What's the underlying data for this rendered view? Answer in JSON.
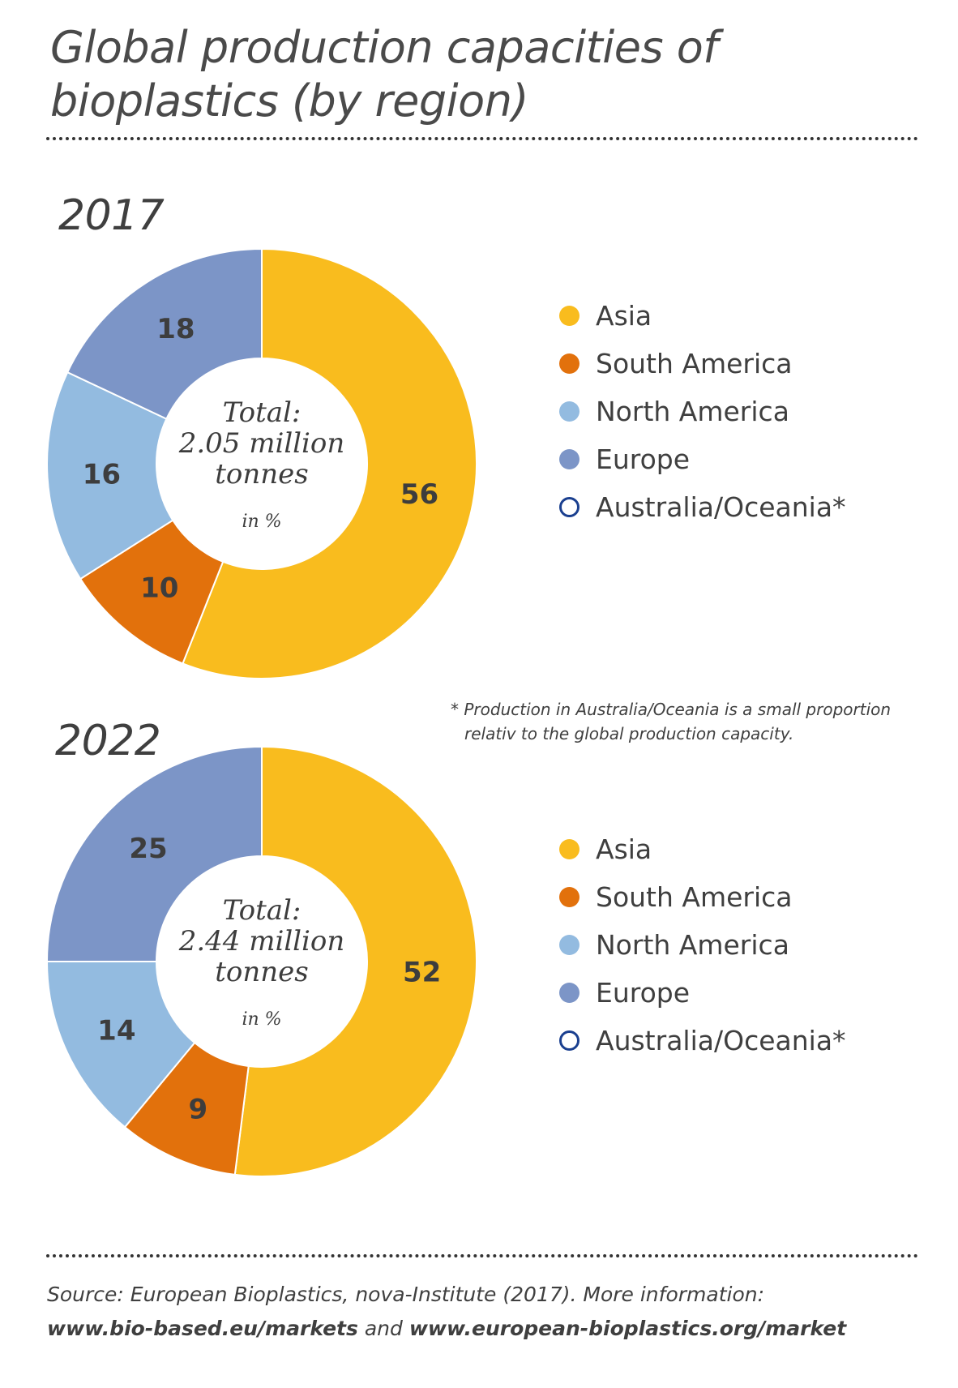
{
  "title": "Global production capacities of bioplastics (by region)",
  "chart_data": [
    {
      "type": "pie",
      "year": "2017",
      "categories": [
        "Asia",
        "South America",
        "North America",
        "Europe",
        "Australia/Oceania*"
      ],
      "values": [
        56,
        10,
        16,
        18,
        0
      ],
      "center": {
        "line1": "Total:",
        "line2": "2.05 million",
        "line3": "tonnes",
        "unit": "in %"
      }
    },
    {
      "type": "pie",
      "year": "2022",
      "categories": [
        "Asia",
        "South America",
        "North America",
        "Europe",
        "Australia/Oceania*"
      ],
      "values": [
        52,
        9,
        14,
        25,
        0
      ],
      "center": {
        "line1": "Total:",
        "line2": "2.44 million",
        "line3": "tonnes",
        "unit": "in %"
      }
    }
  ],
  "colors": {
    "Asia": "#f9bc1e",
    "South America": "#e2710c",
    "North America": "#93bbe0",
    "Europe": "#7c95c7",
    "Australia/Oceania*": "#1a3f8f"
  },
  "legend": [
    "Asia",
    "South America",
    "North America",
    "Europe",
    "Australia/Oceania*"
  ],
  "footnote": {
    "line1": "* Production in Australia/Oceania is a small proportion",
    "line2": "relativ to the global production capacity."
  },
  "source": {
    "line1": "Source: European Bioplastics, nova-Institute (2017). More information:",
    "link1": "www.bio-based.eu/markets",
    "connector": "and",
    "link2": "www.european-bioplastics.org/market"
  }
}
